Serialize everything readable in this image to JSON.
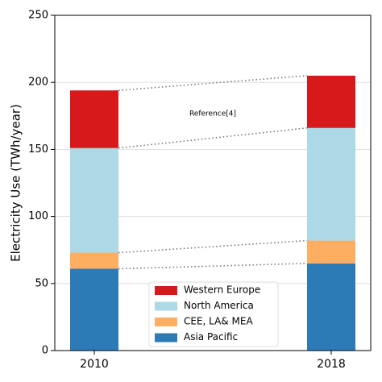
{
  "chart_data": {
    "type": "stacked_bar",
    "y_label": "Electricity Use (TWh/year)",
    "annotation": "Reference[4]",
    "categories": [
      "2010",
      "2018"
    ],
    "series": [
      {
        "name": "Asia Pacific",
        "color": "#2c7bb6",
        "values": [
          61,
          65
        ]
      },
      {
        "name": "CEE, LA& MEA",
        "color": "#fdae61",
        "values": [
          12,
          17
        ]
      },
      {
        "name": "North America",
        "color": "#add8e6",
        "values": [
          78,
          84
        ]
      },
      {
        "name": "Western Europe",
        "color": "#d7191c",
        "values": [
          43,
          39
        ]
      }
    ],
    "ylim": [
      0,
      250
    ],
    "yticks": [
      0,
      50,
      100,
      150,
      200,
      250
    ],
    "grid": true
  }
}
